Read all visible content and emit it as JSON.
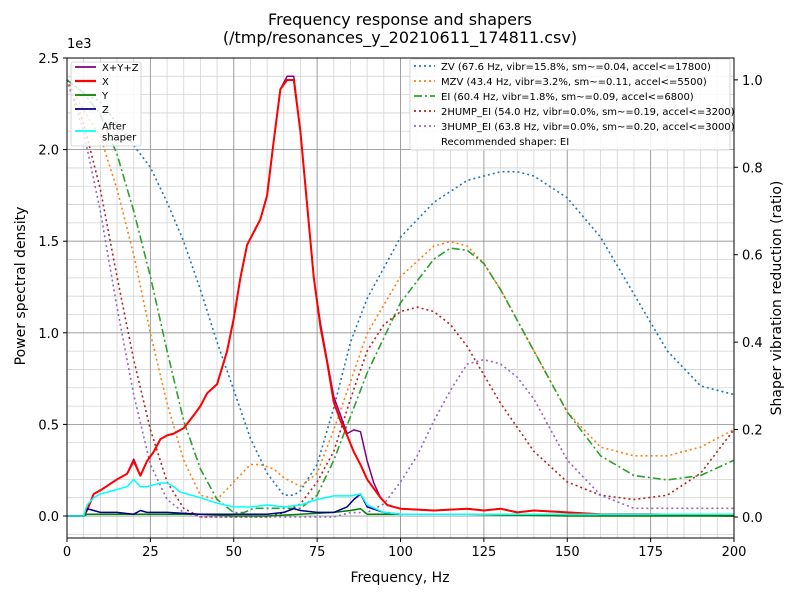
{
  "chart_data": {
    "type": "line",
    "title": "Frequency response and shapers",
    "subtitle": "(/tmp/resonances_y_20210611_174811.csv)",
    "xlabel": "Frequency, Hz",
    "ylabel": "Power spectral density",
    "y2label": "Shaper vibration reduction (ratio)",
    "exponent_label": "1e3",
    "xlim": [
      0,
      200
    ],
    "ylim": [
      -0.12,
      2.5
    ],
    "y2lim": [
      -0.048,
      1.05
    ],
    "xticks": [
      "0",
      "25",
      "50",
      "75",
      "100",
      "125",
      "150",
      "175",
      "200"
    ],
    "yticks": [
      "0.0",
      "0.5",
      "1.0",
      "1.5",
      "2.0",
      "2.5"
    ],
    "y2ticks": [
      "0.0",
      "0.2",
      "0.4",
      "0.6",
      "0.8",
      "1.0"
    ],
    "grid": true,
    "legend_left": {
      "placement": "upper-left",
      "entries": [
        "X+Y+Z",
        "X",
        "Y",
        "Z",
        "After\nshaper"
      ]
    },
    "legend_right": {
      "placement": "upper-right",
      "entries": [
        "ZV (67.6 Hz, vibr=15.8%, sm~=0.04, accel<=17800)",
        "MZV (43.4 Hz, vibr=3.2%, sm~=0.11, accel<=5500)",
        "EI (60.4 Hz, vibr=1.8%, sm~=0.09, accel<=6800)",
        "2HUMP_EI (54.0 Hz, vibr=0.0%, sm~=0.19, accel<=3200)",
        "3HUMP_EI (63.8 Hz, vibr=0.0%, sm~=0.20, accel<=3000)",
        "Recommended shaper: EI"
      ]
    },
    "psd_series": [
      {
        "name": "X+Y+Z",
        "color": "#800080",
        "width": 1.5,
        "dash": "",
        "x": [
          0,
          5,
          6,
          8,
          10,
          15,
          18,
          20,
          22,
          24,
          26,
          28,
          30,
          32,
          35,
          38,
          40,
          42,
          45,
          48,
          50,
          52,
          54,
          56,
          58,
          60,
          62,
          64,
          66,
          68,
          70,
          72,
          74,
          76,
          78,
          80,
          82,
          84,
          86,
          88,
          90,
          92,
          94,
          96,
          98,
          100,
          110,
          120,
          125,
          130,
          135,
          140,
          150,
          160,
          175,
          200
        ],
        "y": [
          0.0,
          0.0,
          0.03,
          0.12,
          0.14,
          0.2,
          0.23,
          0.31,
          0.22,
          0.3,
          0.35,
          0.42,
          0.44,
          0.45,
          0.48,
          0.55,
          0.6,
          0.67,
          0.72,
          0.9,
          1.08,
          1.3,
          1.48,
          1.55,
          1.62,
          1.75,
          2.05,
          2.33,
          2.4,
          2.4,
          2.1,
          1.7,
          1.3,
          1.05,
          0.85,
          0.65,
          0.55,
          0.45,
          0.47,
          0.46,
          0.3,
          0.18,
          0.1,
          0.06,
          0.05,
          0.04,
          0.03,
          0.04,
          0.03,
          0.04,
          0.02,
          0.03,
          0.02,
          0.01,
          0.01,
          0.0
        ]
      },
      {
        "name": "X",
        "color": "#ff0000",
        "width": 2.0,
        "dash": "",
        "x": [
          0,
          5,
          6,
          8,
          10,
          15,
          18,
          20,
          22,
          24,
          26,
          28,
          30,
          32,
          35,
          38,
          40,
          42,
          45,
          48,
          50,
          52,
          54,
          56,
          58,
          60,
          62,
          64,
          66,
          68,
          70,
          72,
          74,
          76,
          78,
          80,
          82,
          84,
          86,
          88,
          90,
          92,
          94,
          96,
          98,
          100,
          110,
          120,
          125,
          130,
          135,
          140,
          150,
          160,
          175,
          200
        ],
        "y": [
          0.0,
          0.0,
          0.03,
          0.12,
          0.14,
          0.2,
          0.23,
          0.3,
          0.22,
          0.3,
          0.35,
          0.42,
          0.44,
          0.45,
          0.48,
          0.55,
          0.6,
          0.67,
          0.72,
          0.9,
          1.08,
          1.3,
          1.48,
          1.55,
          1.62,
          1.75,
          2.05,
          2.33,
          2.38,
          2.38,
          2.1,
          1.7,
          1.3,
          1.03,
          0.84,
          0.62,
          0.52,
          0.44,
          0.35,
          0.28,
          0.2,
          0.15,
          0.1,
          0.06,
          0.05,
          0.04,
          0.03,
          0.04,
          0.03,
          0.04,
          0.02,
          0.03,
          0.02,
          0.01,
          0.01,
          0.0
        ]
      },
      {
        "name": "Y",
        "color": "#008000",
        "width": 1.5,
        "dash": "",
        "x": [
          0,
          5,
          6,
          10,
          20,
          30,
          40,
          50,
          60,
          70,
          80,
          85,
          88,
          90,
          100,
          120,
          150,
          200
        ],
        "y": [
          0.0,
          0.0,
          0.01,
          0.01,
          0.01,
          0.01,
          0.01,
          0.0,
          0.0,
          0.01,
          0.02,
          0.03,
          0.04,
          0.01,
          0.01,
          0.01,
          0.0,
          0.0
        ]
      },
      {
        "name": "Z",
        "color": "#00008b",
        "width": 1.5,
        "dash": "",
        "x": [
          0,
          5,
          6,
          8,
          10,
          15,
          20,
          22,
          24,
          30,
          40,
          50,
          60,
          65,
          68,
          70,
          75,
          80,
          84,
          86,
          88,
          90,
          95,
          100,
          120,
          150,
          175,
          200
        ],
        "y": [
          0.0,
          0.0,
          0.04,
          0.03,
          0.02,
          0.02,
          0.01,
          0.03,
          0.02,
          0.02,
          0.01,
          0.01,
          0.01,
          0.02,
          0.04,
          0.03,
          0.02,
          0.02,
          0.05,
          0.09,
          0.12,
          0.05,
          0.02,
          0.01,
          0.01,
          0.01,
          0.01,
          0.01
        ]
      },
      {
        "name": "After\nshaper",
        "color": "#00ffff",
        "width": 1.5,
        "dash": "",
        "x": [
          0,
          5,
          6,
          8,
          10,
          14,
          18,
          20,
          22,
          24,
          26,
          28,
          30,
          32,
          34,
          36,
          40,
          45,
          50,
          55,
          60,
          65,
          70,
          75,
          80,
          85,
          88,
          90,
          95,
          100,
          120,
          150,
          200
        ],
        "y": [
          0.0,
          0.0,
          0.06,
          0.1,
          0.12,
          0.14,
          0.16,
          0.2,
          0.16,
          0.16,
          0.17,
          0.18,
          0.18,
          0.16,
          0.13,
          0.12,
          0.1,
          0.07,
          0.05,
          0.05,
          0.06,
          0.05,
          0.06,
          0.09,
          0.11,
          0.11,
          0.12,
          0.06,
          0.02,
          0.01,
          0.01,
          0.01,
          0.01
        ]
      }
    ],
    "shaper_series": [
      {
        "name": "ZV (67.6 Hz, vibr=15.8%, sm~=0.04, accel<=17800)",
        "color": "#1f77b4",
        "width": 1.6,
        "dash": "2,3",
        "x": [
          0,
          5,
          10,
          15,
          20,
          25,
          30,
          35,
          40,
          45,
          50,
          55,
          60,
          65,
          68,
          70,
          75,
          80,
          85,
          90,
          100,
          110,
          120,
          130,
          135,
          140,
          150,
          160,
          170,
          180,
          190,
          200
        ],
        "y": [
          1.0,
          0.97,
          0.95,
          0.9,
          0.85,
          0.8,
          0.72,
          0.63,
          0.52,
          0.4,
          0.29,
          0.18,
          0.1,
          0.05,
          0.05,
          0.06,
          0.12,
          0.25,
          0.4,
          0.5,
          0.64,
          0.72,
          0.77,
          0.79,
          0.79,
          0.78,
          0.73,
          0.64,
          0.51,
          0.38,
          0.3,
          0.28
        ]
      },
      {
        "name": "MZV (43.4 Hz, vibr=3.2%, sm~=0.11, accel<=5500)",
        "color": "#ff7f0e",
        "width": 1.6,
        "dash": "2,3",
        "x": [
          0,
          5,
          10,
          15,
          20,
          25,
          30,
          35,
          40,
          45,
          50,
          55,
          58,
          62,
          65,
          70,
          75,
          80,
          90,
          100,
          110,
          115,
          120,
          125,
          130,
          140,
          150,
          160,
          170,
          180,
          190,
          200
        ],
        "y": [
          1.0,
          0.93,
          0.87,
          0.75,
          0.6,
          0.42,
          0.26,
          0.13,
          0.05,
          0.04,
          0.08,
          0.12,
          0.12,
          0.11,
          0.09,
          0.07,
          0.1,
          0.2,
          0.42,
          0.55,
          0.62,
          0.63,
          0.62,
          0.58,
          0.52,
          0.38,
          0.24,
          0.16,
          0.14,
          0.14,
          0.16,
          0.2
        ]
      },
      {
        "name": "EI (60.4 Hz, vibr=1.8%, sm~=0.09, accel<=6800)",
        "color": "#2ca02c",
        "width": 1.6,
        "dash": "8,3,2,3",
        "x": [
          0,
          5,
          10,
          15,
          20,
          25,
          30,
          35,
          40,
          45,
          50,
          53,
          56,
          60,
          65,
          70,
          75,
          80,
          90,
          100,
          110,
          115,
          120,
          125,
          130,
          140,
          150,
          160,
          170,
          180,
          190,
          200
        ],
        "y": [
          1.0,
          0.97,
          0.92,
          0.83,
          0.7,
          0.55,
          0.38,
          0.22,
          0.11,
          0.04,
          0.01,
          0.01,
          0.02,
          0.02,
          0.02,
          0.02,
          0.05,
          0.13,
          0.33,
          0.49,
          0.59,
          0.615,
          0.61,
          0.58,
          0.52,
          0.38,
          0.24,
          0.14,
          0.095,
          0.085,
          0.095,
          0.13
        ]
      },
      {
        "name": "2HUMP_EI (54.0 Hz, vibr=0.0%, sm~=0.19, accel<=3200)",
        "color": "#b22222",
        "width": 1.6,
        "dash": "2,3",
        "x": [
          0,
          5,
          10,
          15,
          20,
          25,
          30,
          35,
          40,
          45,
          50,
          55,
          60,
          65,
          70,
          75,
          80,
          85,
          90,
          95,
          100,
          105,
          110,
          115,
          120,
          130,
          140,
          150,
          160,
          170,
          180,
          190,
          200
        ],
        "y": [
          1.0,
          0.9,
          0.75,
          0.55,
          0.36,
          0.2,
          0.08,
          0.02,
          0.0,
          0.0,
          0.0,
          0.0,
          0.0,
          0.01,
          0.03,
          0.08,
          0.15,
          0.27,
          0.38,
          0.44,
          0.47,
          0.48,
          0.47,
          0.44,
          0.39,
          0.26,
          0.15,
          0.08,
          0.05,
          0.04,
          0.05,
          0.1,
          0.2
        ]
      },
      {
        "name": "3HUMP_EI (63.8 Hz, vibr=0.0%, sm~=0.20, accel<=3000)",
        "color": "#9467bd",
        "width": 1.6,
        "dash": "2,3",
        "x": [
          0,
          5,
          10,
          15,
          20,
          25,
          30,
          35,
          40,
          45,
          50,
          60,
          70,
          80,
          85,
          90,
          95,
          100,
          105,
          110,
          115,
          120,
          125,
          130,
          135,
          140,
          145,
          150,
          160,
          170,
          180,
          190,
          200
        ],
        "y": [
          1.0,
          0.88,
          0.7,
          0.48,
          0.28,
          0.12,
          0.04,
          0.01,
          0.0,
          0.0,
          0.0,
          0.0,
          0.0,
          0.0,
          0.01,
          0.01,
          0.03,
          0.08,
          0.14,
          0.22,
          0.29,
          0.35,
          0.36,
          0.35,
          0.32,
          0.27,
          0.2,
          0.13,
          0.05,
          0.02,
          0.02,
          0.02,
          0.02
        ]
      }
    ]
  }
}
